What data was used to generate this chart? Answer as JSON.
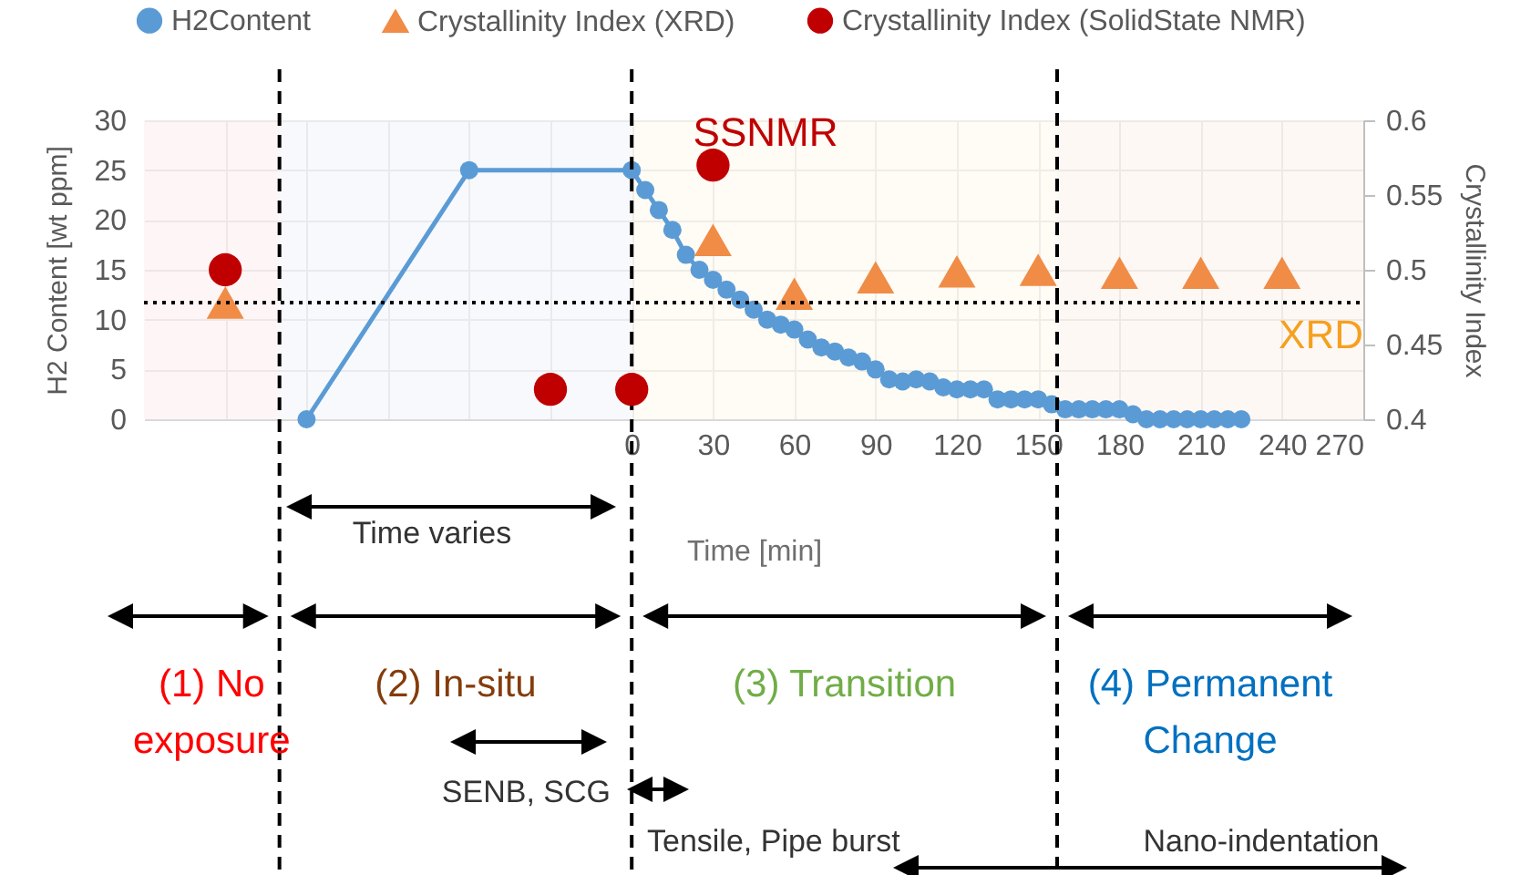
{
  "chart_data": {
    "type": "line",
    "xlabel": "Time [min]",
    "ylabel": "H2 Content [wt ppm]",
    "y2label": "Crystallinity Index",
    "xlim": [
      -180,
      270
    ],
    "xticks": [
      {
        "value": -150,
        "label": null
      },
      {
        "value": -120,
        "label": null
      },
      {
        "value": -90,
        "label": null
      },
      {
        "value": -60,
        "label": null
      },
      {
        "value": -30,
        "label": null
      },
      0,
      30,
      60,
      90,
      120,
      150,
      180,
      210,
      240,
      270
    ],
    "ylim": [
      0,
      30
    ],
    "yticks": [
      0,
      5,
      10,
      15,
      20,
      25,
      30
    ],
    "y2lim": [
      0.4,
      0.6
    ],
    "y2ticks": [
      0.4,
      0.45,
      0.5,
      0.55,
      0.6
    ],
    "grid": true,
    "legend": "top",
    "series": [
      {
        "name": "H2Content",
        "type": "line",
        "color": "#5b9bd5",
        "marker": "circle",
        "line_style": "solid",
        "x": [
          -120,
          -60,
          0,
          5,
          10,
          15,
          20,
          25,
          30,
          35,
          40,
          45,
          50,
          55,
          60,
          65,
          70,
          75,
          80,
          85,
          90,
          95,
          100,
          105,
          110,
          115,
          120,
          125,
          130,
          135,
          140,
          145,
          150,
          155,
          160,
          165,
          170,
          175,
          180,
          185,
          190,
          195,
          200,
          205,
          210,
          215,
          220,
          225
        ],
        "values": [
          0,
          25,
          25,
          23,
          21,
          19,
          16.5,
          15,
          14,
          13,
          12,
          11,
          10,
          9.5,
          9,
          8,
          7.2,
          6.8,
          6.2,
          5.8,
          5,
          4,
          3.8,
          4,
          3.8,
          3.2,
          3,
          3,
          3,
          2,
          2,
          2,
          2,
          1.5,
          1,
          1,
          1,
          1,
          1,
          0.5,
          0,
          0,
          0,
          0,
          0,
          0,
          0,
          0
        ]
      },
      {
        "name": "Crystallinity Index (XRD)",
        "type": "scatter",
        "axis": "y2",
        "color": "#f08c46",
        "marker": "triangle",
        "x": [
          -150,
          30,
          60,
          90,
          120,
          150,
          180,
          210,
          240
        ],
        "values": [
          0.478,
          0.52,
          0.484,
          0.495,
          0.499,
          0.5,
          0.498,
          0.498,
          0.498
        ]
      },
      {
        "name": "Crystallinity Index (SolidState NMR)",
        "type": "scatter",
        "axis": "y2",
        "color": "#c00000",
        "marker": "circle",
        "x": [
          -150,
          -30,
          0,
          30
        ],
        "values": [
          0.5,
          0.42,
          0.42,
          0.57
        ]
      }
    ],
    "ref_lines": [
      {
        "axis": "x",
        "value": -130,
        "color": "#000000",
        "line_style": "dashed"
      },
      {
        "axis": "x",
        "value": 0,
        "color": "#000000",
        "line_style": "dashed"
      },
      {
        "axis": "x",
        "value": 157,
        "color": "#000000",
        "line_style": "dashed"
      },
      {
        "axis": "y2",
        "value": 0.478,
        "label": "XRD",
        "color": "#000000",
        "line_style": "dotted"
      }
    ],
    "bands": [
      {
        "axis": "x",
        "from": -180,
        "to": -130,
        "color": "#fdf0f0"
      },
      {
        "axis": "x",
        "from": -130,
        "to": 0,
        "color": "#f2f5fb"
      },
      {
        "axis": "x",
        "from": 0,
        "to": 157,
        "color": "#fff8ee"
      },
      {
        "axis": "x",
        "from": 157,
        "to": 270,
        "color": "#fdf3ef"
      }
    ],
    "annotations": [
      "SSNMR",
      "Time varies",
      "SENB, SCG",
      "Tensile, Pipe burst",
      "Nano-indentation",
      "(1) No exposure",
      "(2) In-situ",
      "(3) Transition",
      "(4) Permanent Change"
    ]
  }
}
